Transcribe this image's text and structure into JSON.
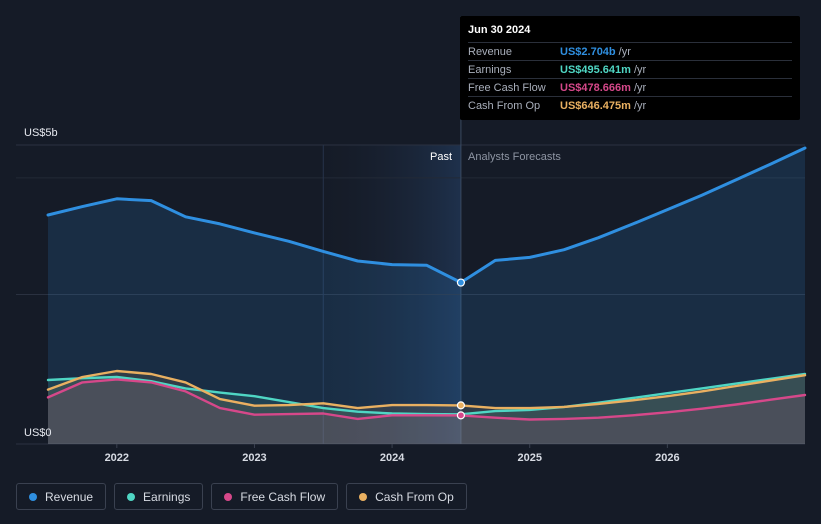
{
  "chart_data": {
    "type": "line",
    "y_top_label": "US$5b",
    "y_bottom_label": "US$0",
    "ylim": [
      0,
      5
    ],
    "xlim": [
      2021.5,
      2027.0
    ],
    "x_ticks": [
      {
        "value": 2022,
        "label": "2022"
      },
      {
        "value": 2023,
        "label": "2023"
      },
      {
        "value": 2024,
        "label": "2024"
      },
      {
        "value": 2025,
        "label": "2025"
      },
      {
        "value": 2026,
        "label": "2026"
      }
    ],
    "divider_x": 2024.5,
    "past_label": "Past",
    "forecast_label": "Analysts Forecasts",
    "series": [
      {
        "name": "Revenue",
        "color": "#2f8fe0",
        "x": [
          2021.5,
          2021.75,
          2022.0,
          2022.25,
          2022.5,
          2022.75,
          2023.0,
          2023.25,
          2023.5,
          2023.75,
          2024.0,
          2024.25,
          2024.5,
          2024.75,
          2025.0,
          2025.25,
          2025.5,
          2025.75,
          2026.0,
          2026.25,
          2026.5,
          2026.75,
          2027.0
        ],
        "values": [
          3.83,
          3.97,
          4.1,
          4.07,
          3.8,
          3.68,
          3.53,
          3.39,
          3.22,
          3.06,
          3.0,
          2.99,
          2.7,
          3.07,
          3.12,
          3.25,
          3.45,
          3.68,
          3.92,
          4.16,
          4.42,
          4.68,
          4.95
        ]
      },
      {
        "name": "Earnings",
        "color": "#4fd6c4",
        "x": [
          2021.5,
          2021.75,
          2022.0,
          2022.25,
          2022.5,
          2022.75,
          2023.0,
          2023.25,
          2023.5,
          2023.75,
          2024.0,
          2024.25,
          2024.5,
          2024.75,
          2025.0,
          2025.25,
          2025.5,
          2025.75,
          2026.0,
          2026.25,
          2026.5,
          2026.75,
          2027.0
        ],
        "values": [
          1.07,
          1.1,
          1.12,
          1.05,
          0.93,
          0.86,
          0.8,
          0.7,
          0.6,
          0.54,
          0.51,
          0.5,
          0.496,
          0.55,
          0.57,
          0.62,
          0.69,
          0.77,
          0.85,
          0.93,
          1.01,
          1.09,
          1.17
        ]
      },
      {
        "name": "Free Cash Flow",
        "color": "#d6488a",
        "x": [
          2021.5,
          2021.75,
          2022.0,
          2022.25,
          2022.5,
          2022.75,
          2023.0,
          2023.25,
          2023.5,
          2023.75,
          2024.0,
          2024.25,
          2024.5,
          2024.75,
          2025.0,
          2025.25,
          2025.5,
          2025.75,
          2026.0,
          2026.25,
          2026.5,
          2026.75,
          2027.0
        ],
        "values": [
          0.78,
          1.03,
          1.08,
          1.03,
          0.88,
          0.6,
          0.49,
          0.5,
          0.51,
          0.42,
          0.48,
          0.48,
          0.479,
          0.44,
          0.41,
          0.42,
          0.44,
          0.48,
          0.53,
          0.59,
          0.66,
          0.74,
          0.82
        ]
      },
      {
        "name": "Cash From Op",
        "color": "#e9b061",
        "x": [
          2021.5,
          2021.75,
          2022.0,
          2022.25,
          2022.5,
          2022.75,
          2023.0,
          2023.25,
          2023.5,
          2023.75,
          2024.0,
          2024.25,
          2024.5,
          2024.75,
          2025.0,
          2025.25,
          2025.5,
          2025.75,
          2026.0,
          2026.25,
          2026.5,
          2026.75,
          2027.0
        ],
        "values": [
          0.91,
          1.12,
          1.22,
          1.17,
          1.03,
          0.75,
          0.64,
          0.65,
          0.68,
          0.6,
          0.65,
          0.65,
          0.646,
          0.6,
          0.6,
          0.62,
          0.67,
          0.73,
          0.8,
          0.88,
          0.97,
          1.06,
          1.15
        ]
      }
    ],
    "legend_placement": "bottom-left"
  },
  "tooltip": {
    "date": "Jun 30 2024",
    "rows": [
      {
        "label": "Revenue",
        "value": "US$2.704b",
        "unit": "/yr",
        "color": "#2f8fe0"
      },
      {
        "label": "Earnings",
        "value": "US$495.641m",
        "unit": "/yr",
        "color": "#4fd6c4"
      },
      {
        "label": "Free Cash Flow",
        "value": "US$478.666m",
        "unit": "/yr",
        "color": "#d6488a"
      },
      {
        "label": "Cash From Op",
        "value": "US$646.475m",
        "unit": "/yr",
        "color": "#e9b061"
      }
    ]
  },
  "legend": [
    {
      "label": "Revenue",
      "color": "#2f8fe0"
    },
    {
      "label": "Earnings",
      "color": "#4fd6c4"
    },
    {
      "label": "Free Cash Flow",
      "color": "#d6488a"
    },
    {
      "label": "Cash From Op",
      "color": "#e9b061"
    }
  ]
}
